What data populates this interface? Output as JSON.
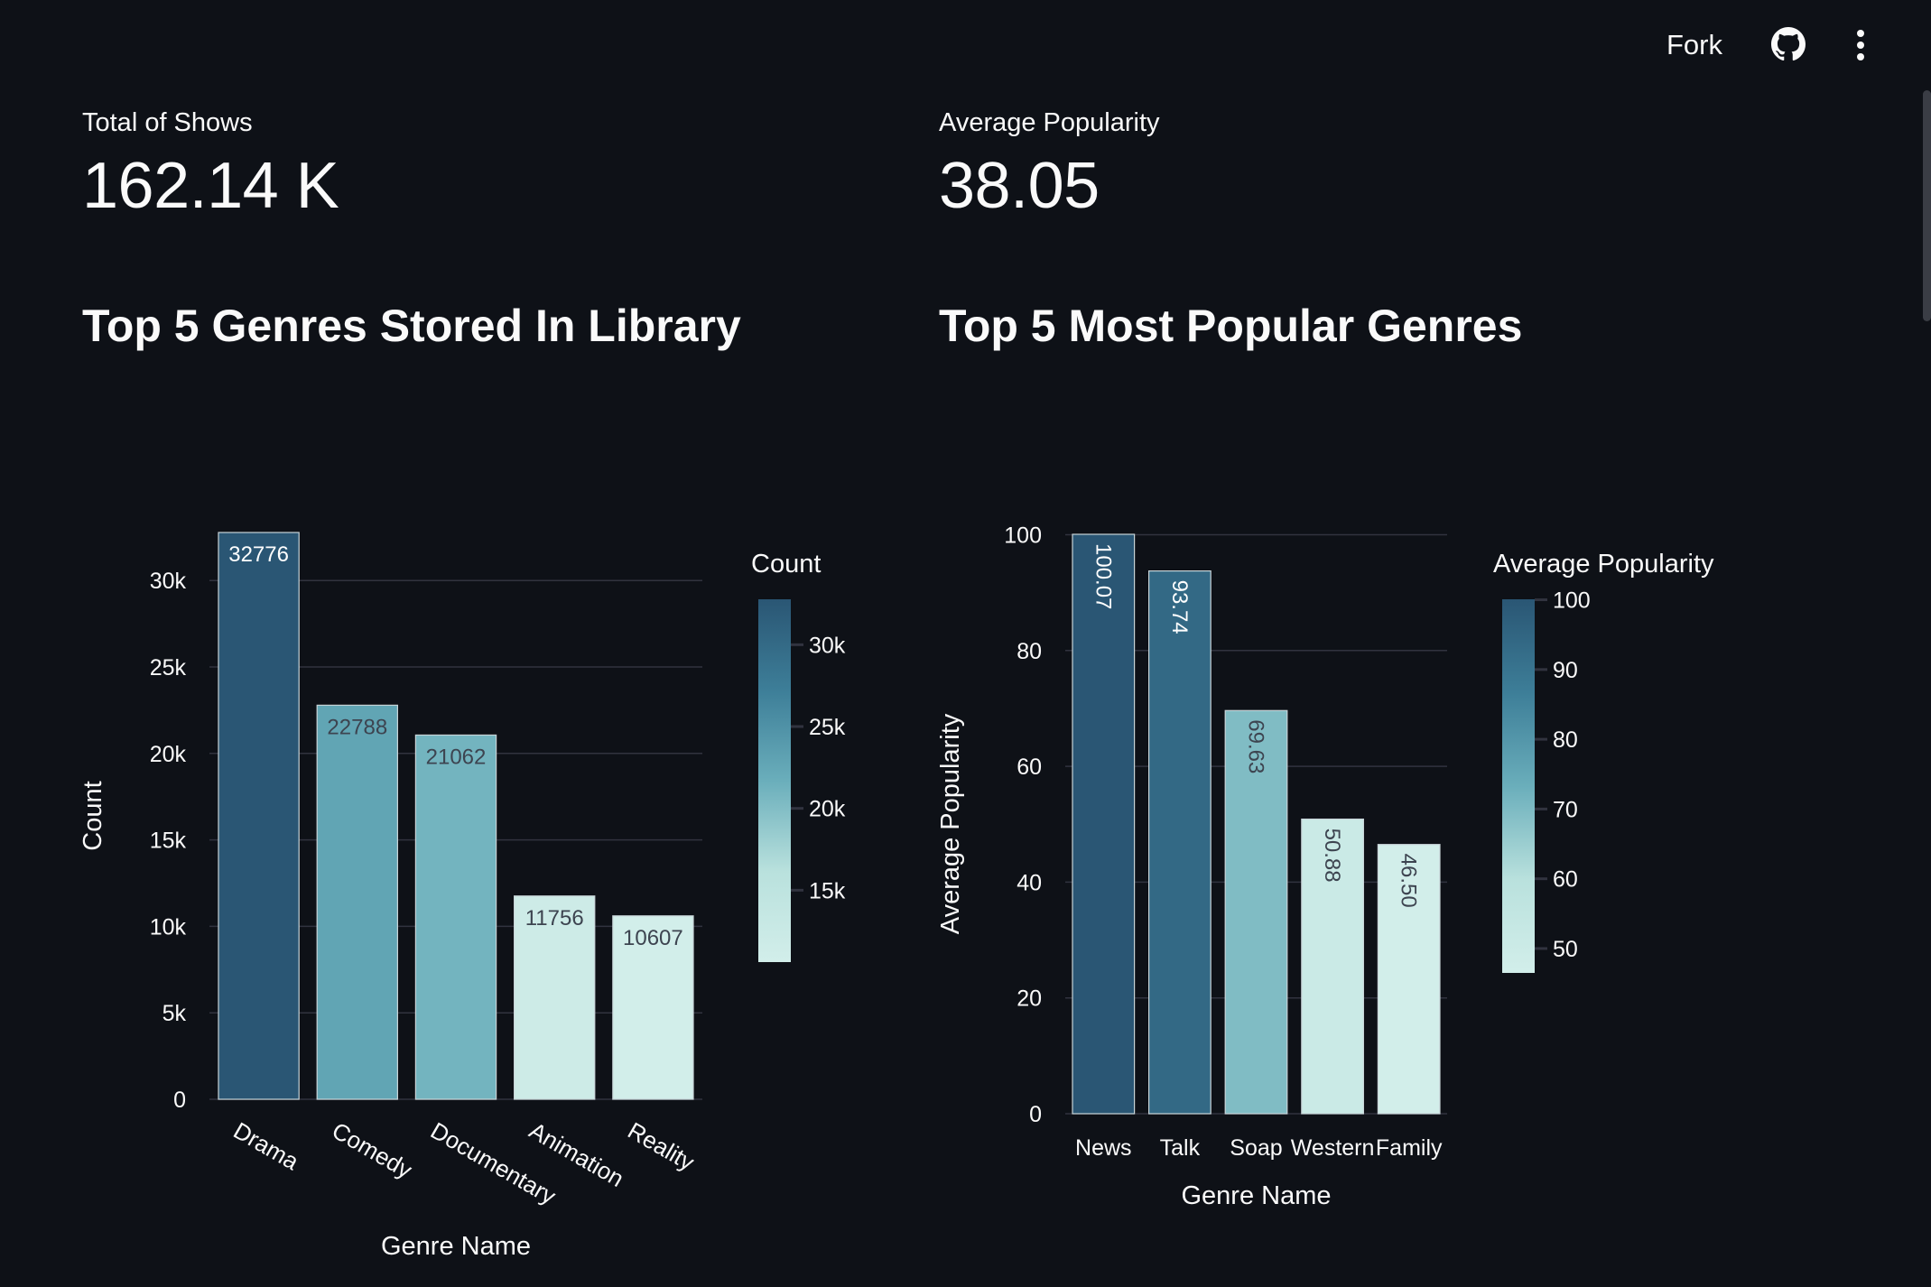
{
  "header": {
    "fork_label": "Fork",
    "icons": [
      "github-icon",
      "more-vert-icon"
    ]
  },
  "metrics": {
    "total_shows": {
      "label": "Total of Shows",
      "value": "162.14 K"
    },
    "average_popularity": {
      "label": "Average Popularity",
      "value": "38.05"
    }
  },
  "headings": {
    "left": "Top 5 Genres Stored In Library",
    "right": "Top 5 Most Popular Genres"
  },
  "colors": {
    "background": "#0e1117",
    "colorscale": [
      "#d2eeea",
      "#b9e1dd",
      "#6aaebb",
      "#3d7e98",
      "#2a5674"
    ]
  },
  "chart_data": [
    {
      "type": "bar",
      "categories": [
        "Drama",
        "Comedy",
        "Documentary",
        "Animation",
        "Reality"
      ],
      "values": [
        32776,
        22788,
        21062,
        11756,
        10607
      ],
      "value_labels": [
        "32776",
        "22788",
        "21062",
        "11756",
        "10607"
      ],
      "xlabel": "Genre Name",
      "ylabel": "Count",
      "ylim": [
        0,
        32776
      ],
      "yticks": [
        0,
        5000,
        10000,
        15000,
        20000,
        25000,
        30000
      ],
      "ytick_labels": [
        "0",
        "5k",
        "10k",
        "15k",
        "20k",
        "25k",
        "30k"
      ],
      "colorbar": {
        "title": "Count",
        "range": [
          10607,
          32776
        ],
        "ticks": [
          15000,
          20000,
          25000,
          30000
        ],
        "tick_labels": [
          "15k",
          "20k",
          "25k",
          "30k"
        ]
      },
      "grid": true,
      "legend": "right"
    },
    {
      "type": "bar",
      "categories": [
        "News",
        "Talk",
        "Soap",
        "Western",
        "Family"
      ],
      "values": [
        100.07,
        93.74,
        69.63,
        50.88,
        46.5
      ],
      "value_labels": [
        "100.07",
        "93.74",
        "69.63",
        "50.88",
        "46.50"
      ],
      "xlabel": "Genre Name",
      "ylabel": "Average Popularity",
      "ylim": [
        0,
        100.07
      ],
      "yticks": [
        0,
        20,
        40,
        60,
        80,
        100
      ],
      "ytick_labels": [
        "0",
        "20",
        "40",
        "60",
        "80",
        "100"
      ],
      "colorbar": {
        "title": "Average Popularity",
        "range": [
          46.5,
          100.07
        ],
        "ticks": [
          50,
          60,
          70,
          80,
          90,
          100
        ],
        "tick_labels": [
          "50",
          "60",
          "70",
          "80",
          "90",
          "100"
        ]
      },
      "grid": true,
      "legend": "right"
    }
  ]
}
